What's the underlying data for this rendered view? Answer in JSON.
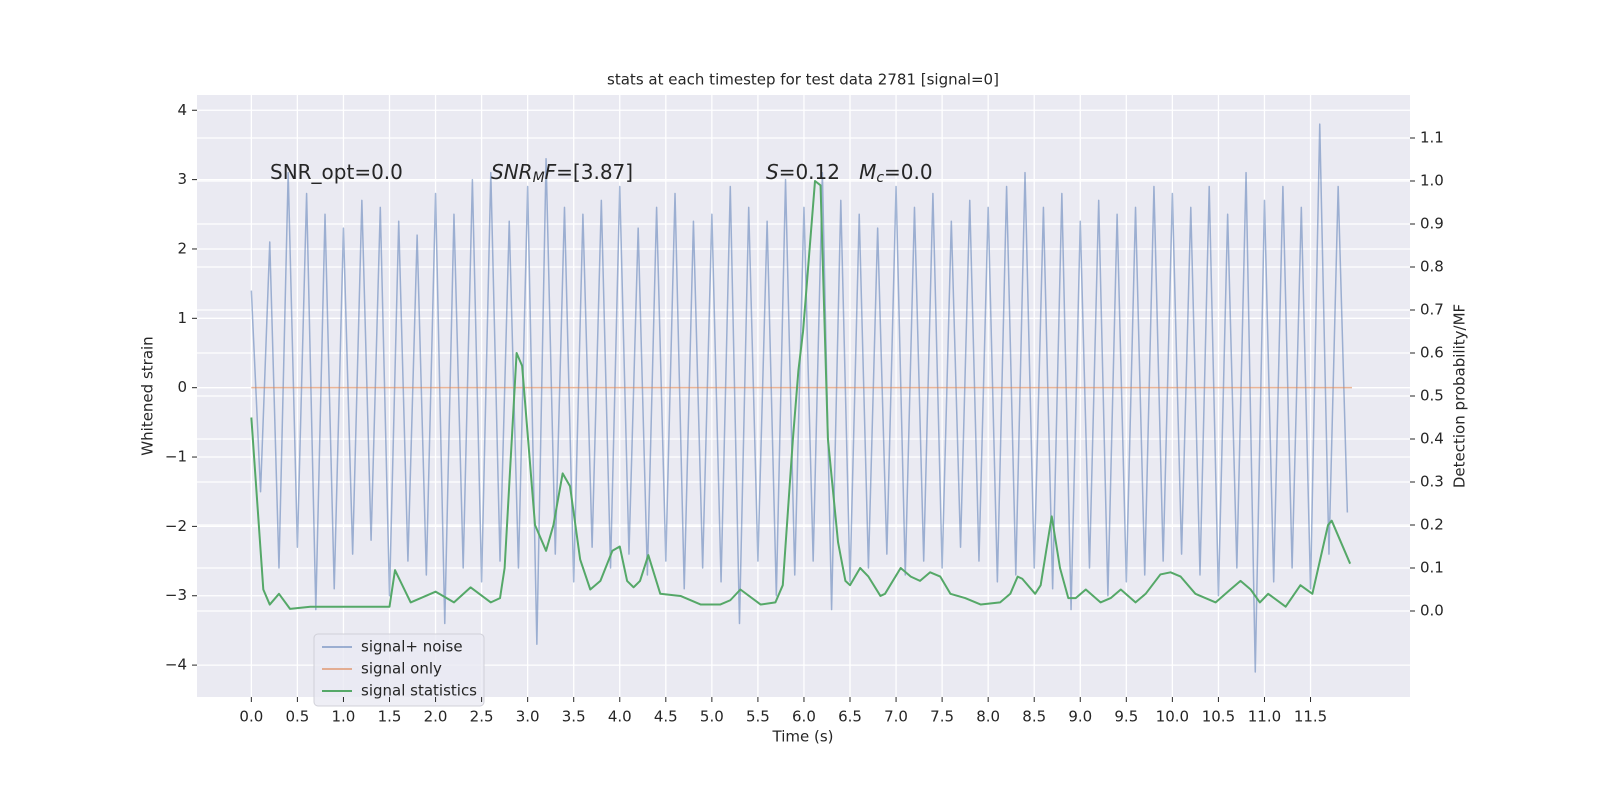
{
  "chart_data": {
    "type": "line",
    "title": "stats at each timestep for test data 2781 [signal=0]",
    "xlabel": "Time (s)",
    "ylabel": "Whitened strain",
    "y2label": "Detection probability/MF",
    "annotations": [
      [
        {
          "text": "SNR_opt=0.0"
        }
      ],
      [
        {
          "text": "SNR",
          "italic": true
        },
        {
          "text": "M",
          "italic": true,
          "sub": true
        },
        {
          "text": "F",
          "italic": true
        },
        {
          "text": "=[3.87]"
        }
      ],
      [
        {
          "text": "S",
          "italic": true
        },
        {
          "text": "=0.12   "
        },
        {
          "text": "M",
          "italic": true
        },
        {
          "text": "c",
          "italic": true,
          "sub": true
        },
        {
          "text": "=0.0"
        }
      ]
    ],
    "xlim": [
      -0.59,
      12.58
    ],
    "ylim": [
      -4.46,
      4.22
    ],
    "y2lim": [
      -0.2,
      1.2
    ],
    "xticks": [
      {
        "value": 0,
        "label": "0.0"
      },
      0.5,
      {
        "value": 1,
        "label": "1.0"
      },
      1.5,
      {
        "value": 2,
        "label": "2.0"
      },
      2.5,
      {
        "value": 3,
        "label": "3.0"
      },
      3.5,
      {
        "value": 4,
        "label": "4.0"
      },
      4.5,
      {
        "value": 5,
        "label": "5.0"
      },
      5.5,
      {
        "value": 6,
        "label": "6.0"
      },
      6.5,
      {
        "value": 7,
        "label": "7.0"
      },
      7.5,
      {
        "value": 8,
        "label": "8.0"
      },
      8.5,
      {
        "value": 9,
        "label": "9.0"
      },
      9.5,
      {
        "value": 10,
        "label": "10.0"
      },
      10.5,
      {
        "value": 11,
        "label": "11.0"
      },
      11.5
    ],
    "yticks": [
      {
        "value": -4,
        "label": "−4"
      },
      {
        "value": -3,
        "label": "−3"
      },
      {
        "value": -2,
        "label": "−2"
      },
      {
        "value": -1,
        "label": "−1"
      },
      0,
      1,
      2,
      3,
      4
    ],
    "y2ticks": [
      {
        "value": 0,
        "label": "0.0"
      },
      0.1,
      0.2,
      0.3,
      0.4,
      0.5,
      0.6,
      0.7,
      0.8,
      0.9,
      {
        "value": 1,
        "label": "1.0"
      },
      1.1
    ],
    "grid": true,
    "legend": "lower left",
    "series": [
      {
        "name": "signal+ noise",
        "color": "#4c72b0",
        "alpha": 0.5,
        "x": [
          0,
          0.1,
          0.2,
          0.3,
          0.4,
          0.5,
          0.6,
          0.7,
          0.8,
          0.9,
          1,
          1.1,
          1.2,
          1.3,
          1.4,
          1.5,
          1.6,
          1.7,
          1.8,
          1.9,
          2,
          2.1,
          2.2,
          2.3,
          2.4,
          2.5,
          2.6,
          2.7,
          2.8,
          2.9,
          3,
          3.1,
          3.2,
          3.3,
          3.4,
          3.5,
          3.6,
          3.7,
          3.8,
          3.9,
          4,
          4.1,
          4.2,
          4.3,
          4.4,
          4.5,
          4.6,
          4.7,
          4.8,
          4.9,
          5,
          5.1,
          5.2,
          5.3,
          5.4,
          5.5,
          5.6,
          5.7,
          5.8,
          5.9,
          6,
          6.1,
          6.2,
          6.3,
          6.4,
          6.5,
          6.6,
          6.7,
          6.8,
          6.9,
          7,
          7.1,
          7.2,
          7.3,
          7.4,
          7.5,
          7.6,
          7.7,
          7.8,
          7.9,
          8,
          8.1,
          8.2,
          8.3,
          8.4,
          8.5,
          8.6,
          8.7,
          8.8,
          8.9,
          9,
          9.1,
          9.2,
          9.3,
          9.4,
          9.5,
          9.6,
          9.7,
          9.8,
          9.9,
          10,
          10.1,
          10.2,
          10.3,
          10.4,
          10.5,
          10.6,
          10.7,
          10.8,
          10.9,
          11,
          11.1,
          11.2,
          11.3,
          11.4,
          11.5,
          11.6,
          11.7,
          11.8,
          11.9
        ],
        "values": [
          1.4,
          -1.5,
          2.1,
          -2.6,
          3.1,
          -2.3,
          2.8,
          -3.2,
          2.5,
          -2.9,
          2.3,
          -2.4,
          2.7,
          -2.2,
          2.6,
          -3.0,
          2.4,
          -2.5,
          2.2,
          -2.7,
          2.8,
          -3.4,
          2.5,
          -2.6,
          3.0,
          -2.8,
          3.1,
          -2.5,
          2.4,
          -2.6,
          2.9,
          -3.7,
          3.3,
          -2.4,
          2.6,
          -2.8,
          2.5,
          -2.3,
          2.7,
          -2.6,
          2.9,
          -2.4,
          2.3,
          -2.7,
          2.6,
          -2.5,
          2.8,
          -2.9,
          2.4,
          -2.6,
          2.5,
          -2.8,
          2.9,
          -3.4,
          2.6,
          -2.5,
          2.4,
          -3.0,
          3.0,
          -2.7,
          2.6,
          -2.5,
          3.1,
          -3.2,
          2.7,
          -2.8,
          2.5,
          -2.6,
          2.3,
          -2.4,
          2.9,
          -2.7,
          2.6,
          -2.5,
          2.8,
          -2.6,
          2.4,
          -2.3,
          2.7,
          -2.5,
          2.6,
          -2.8,
          2.9,
          -2.7,
          3.1,
          -2.6,
          2.6,
          -2.9,
          2.8,
          -3.2,
          2.4,
          -2.6,
          2.7,
          -3.0,
          2.5,
          -2.8,
          2.6,
          -2.7,
          2.9,
          -2.5,
          2.8,
          -2.4,
          2.6,
          -2.7,
          2.9,
          -3.0,
          2.5,
          -2.6,
          3.1,
          -4.1,
          2.7,
          -2.8,
          2.9,
          -2.6,
          2.6,
          -2.9,
          3.8,
          -2.4,
          2.9,
          -1.8
        ]
      },
      {
        "name": "signal only",
        "color": "#dd8452",
        "alpha": 0.6,
        "x": [
          0,
          11.95
        ],
        "values": [
          0,
          0
        ]
      },
      {
        "name": "signal statistics",
        "color": "#55a868",
        "alpha": 1,
        "axis": "y2",
        "x": [
          0,
          0.13,
          0.2,
          0.3,
          0.42,
          0.64,
          1.5,
          1.56,
          1.73,
          2.0,
          2.2,
          2.38,
          2.6,
          2.7,
          2.75,
          2.88,
          2.94,
          3.08,
          3.2,
          3.28,
          3.38,
          3.46,
          3.57,
          3.68,
          3.79,
          3.92,
          4.0,
          4.08,
          4.15,
          4.22,
          4.31,
          4.44,
          4.66,
          4.88,
          5.09,
          5.2,
          5.31,
          5.53,
          5.69,
          5.77,
          5.88,
          5.94,
          5.99,
          6.12,
          6.18,
          6.26,
          6.37,
          6.45,
          6.5,
          6.61,
          6.7,
          6.83,
          6.88,
          7.05,
          7.16,
          7.26,
          7.37,
          7.48,
          7.59,
          7.75,
          7.92,
          8.13,
          8.24,
          8.32,
          8.37,
          8.51,
          8.57,
          8.69,
          8.78,
          8.87,
          8.95,
          9.06,
          9.22,
          9.33,
          9.44,
          9.6,
          9.71,
          9.87,
          9.98,
          10.09,
          10.25,
          10.47,
          10.63,
          10.74,
          10.85,
          10.95,
          11.04,
          11.23,
          11.39,
          11.52,
          11.69,
          11.73,
          11.93
        ],
        "values": [
          0.45,
          0.05,
          0.015,
          0.04,
          0.005,
          0.01,
          0.01,
          0.095,
          0.02,
          0.045,
          0.02,
          0.055,
          0.02,
          0.03,
          0.1,
          0.6,
          0.57,
          0.2,
          0.14,
          0.2,
          0.32,
          0.29,
          0.12,
          0.05,
          0.07,
          0.14,
          0.15,
          0.07,
          0.055,
          0.07,
          0.13,
          0.04,
          0.035,
          0.015,
          0.015,
          0.025,
          0.05,
          0.015,
          0.02,
          0.06,
          0.4,
          0.56,
          0.65,
          1.0,
          0.99,
          0.4,
          0.16,
          0.07,
          0.06,
          0.1,
          0.08,
          0.035,
          0.04,
          0.1,
          0.08,
          0.07,
          0.09,
          0.08,
          0.04,
          0.03,
          0.015,
          0.02,
          0.04,
          0.08,
          0.075,
          0.04,
          0.06,
          0.22,
          0.1,
          0.03,
          0.03,
          0.05,
          0.02,
          0.03,
          0.05,
          0.02,
          0.04,
          0.085,
          0.09,
          0.08,
          0.04,
          0.02,
          0.05,
          0.07,
          0.05,
          0.02,
          0.04,
          0.01,
          0.06,
          0.04,
          0.2,
          0.21,
          0.11
        ]
      }
    ]
  }
}
